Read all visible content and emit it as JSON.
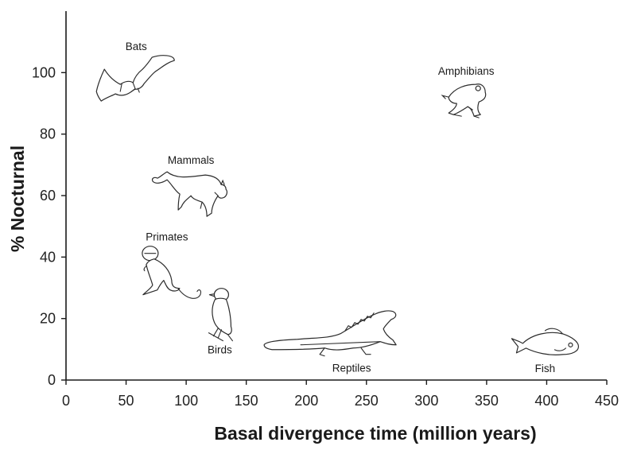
{
  "chart_data": {
    "type": "scatter",
    "title": "",
    "xlabel": "Basal divergence time (million years)",
    "ylabel": "% Nocturnal",
    "xlim": [
      0,
      450
    ],
    "ylim": [
      0,
      120
    ],
    "xticks": [
      "0",
      "50",
      "100",
      "150",
      "200",
      "250",
      "300",
      "350",
      "400",
      "450"
    ],
    "yticks": [
      "0",
      "20",
      "40",
      "60",
      "80",
      "100"
    ],
    "grid": false,
    "legend": "none",
    "points": [
      {
        "label": "Bats",
        "x": 65,
        "y": 98,
        "icon": "bat-icon"
      },
      {
        "label": "Mammals",
        "x": 100,
        "y": 61,
        "icon": "cougar-icon"
      },
      {
        "label": "Primates",
        "x": 80,
        "y": 35,
        "icon": "monkey-icon"
      },
      {
        "label": "Birds",
        "x": 128,
        "y": 20,
        "icon": "bird-icon"
      },
      {
        "label": "Reptiles",
        "x": 235,
        "y": 13,
        "icon": "lizard-icon"
      },
      {
        "label": "Amphibians",
        "x": 333,
        "y": 91,
        "icon": "frog-icon"
      },
      {
        "label": "Fish",
        "x": 400,
        "y": 14,
        "icon": "fish-icon"
      }
    ]
  }
}
